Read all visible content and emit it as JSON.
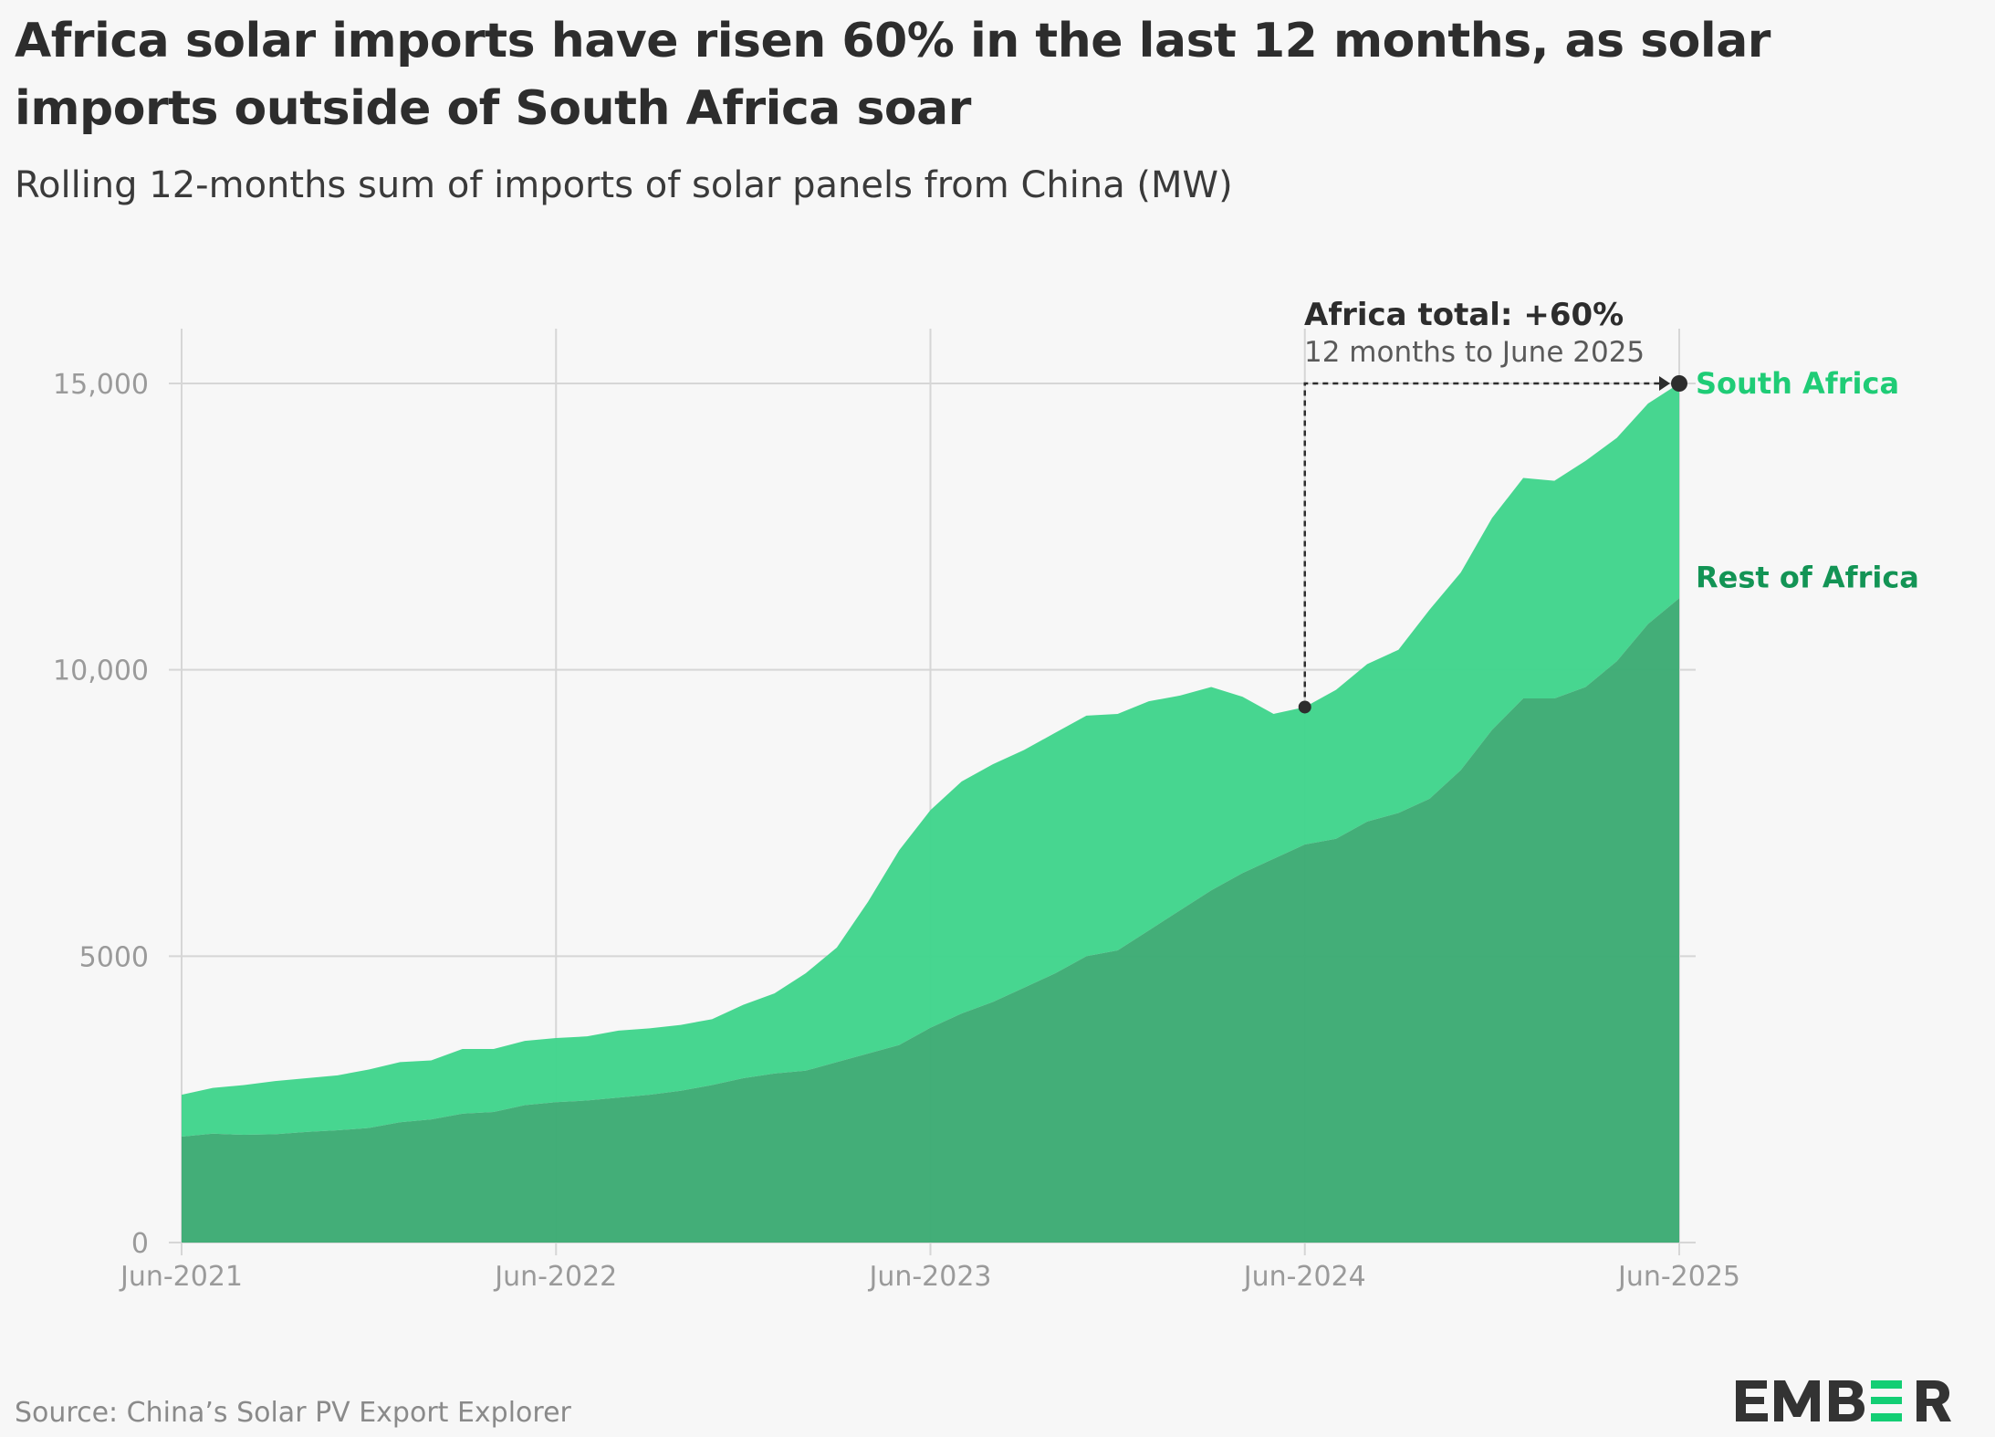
{
  "title": "Africa solar imports have risen 60% in the last 12 months, as solar imports outside of South Africa soar",
  "subtitle": "Rolling 12-months sum of imports of solar panels from China (MW)",
  "source": "Source: China’s Solar PV Export Explorer",
  "logo_text": "EMBER",
  "colors": {
    "south_africa": "#41d58c",
    "rest_of_africa": "#3dab74",
    "south_africa_label": "#1fcc76",
    "rest_label": "#139455",
    "annotation": "#2d2d2d",
    "logo_accent": "#13ce74"
  },
  "annotation": {
    "headline": "Africa total: +60%",
    "detail": "12 months to June 2025"
  },
  "chart_data": {
    "type": "area",
    "stacked": true,
    "grid": true,
    "ylim": [
      0,
      15000
    ],
    "yticks": [
      "0",
      "5000",
      "10,000",
      "15,000"
    ],
    "ytick_values": [
      0,
      5000,
      10000,
      15000
    ],
    "xticks": [
      "Jun-2021",
      "Jun-2022",
      "Jun-2023",
      "Jun-2024",
      "Jun-2025"
    ],
    "x_start": "2021-06",
    "x_end": "2025-06",
    "series": [
      {
        "name": "Rest of Africa",
        "values": [
          1850,
          1900,
          1880,
          1890,
          1930,
          1960,
          2000,
          2100,
          2150,
          2250,
          2280,
          2400,
          2450,
          2480,
          2530,
          2580,
          2650,
          2750,
          2870,
          2950,
          3000,
          3150,
          3300,
          3450,
          3750,
          4000,
          4200,
          4450,
          4700,
          5000,
          5100,
          5450,
          5800,
          6150,
          6450,
          6700,
          6950,
          7050,
          7350,
          7500,
          7750,
          8250,
          8950,
          9500,
          9500,
          9700,
          10150,
          10800,
          11250
        ]
      },
      {
        "name": "South Africa",
        "values": [
          730,
          800,
          870,
          930,
          940,
          960,
          1020,
          1050,
          1030,
          1130,
          1100,
          1120,
          1120,
          1120,
          1170,
          1160,
          1150,
          1150,
          1280,
          1400,
          1700,
          2000,
          2650,
          3400,
          3800,
          4050,
          4150,
          4150,
          4200,
          4200,
          4130,
          4000,
          3750,
          3550,
          3080,
          2530,
          2400,
          2600,
          2750,
          2850,
          3300,
          3450,
          3700,
          3850,
          3800,
          3950,
          3900,
          3850,
          3750
        ]
      }
    ]
  }
}
